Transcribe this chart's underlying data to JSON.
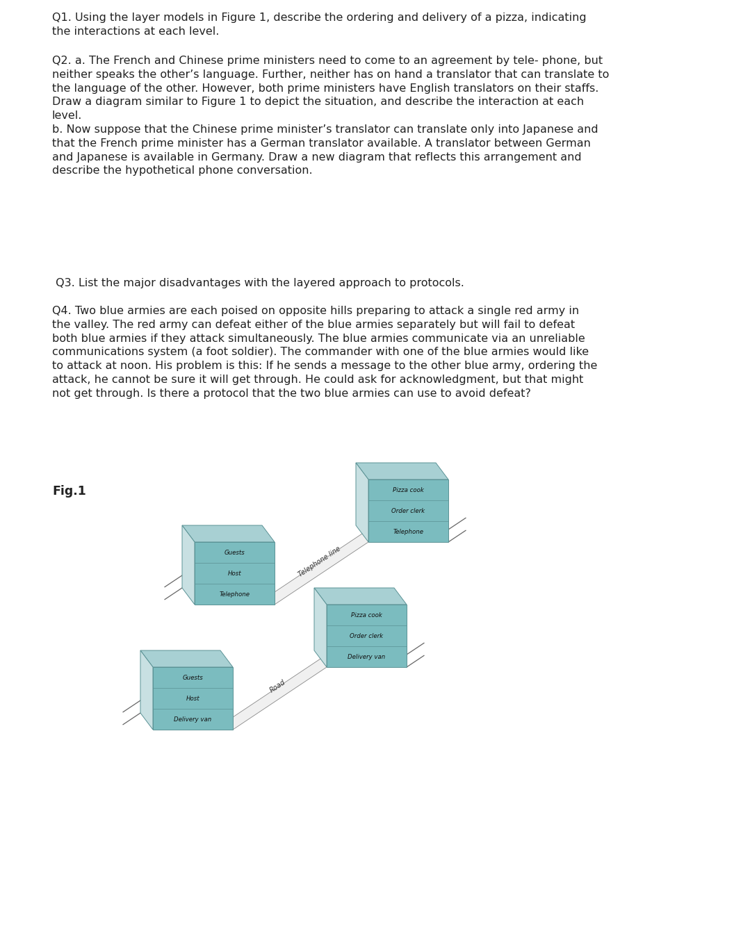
{
  "background_color": "#ffffff",
  "text_color": "#222222",
  "q1": "Q1. Using the layer models in Figure 1, describe the ordering and delivery of a pizza, indicating\nthe interactions at each level.",
  "q2": "Q2. a. The French and Chinese prime ministers need to come to an agreement by tele- phone, but\nneither speaks the other’s language. Further, neither has on hand a translator that can translate to\nthe language of the other. However, both prime ministers have English translators on their staffs.\nDraw a diagram similar to Figure 1 to depict the situation, and describe the interaction at each\nlevel.\nb. Now suppose that the Chinese prime minister’s translator can translate only into Japanese and\nthat the French prime minister has a German translator available. A translator between German\nand Japanese is available in Germany. Draw a new diagram that reflects this arrangement and\ndescribe the hypothetical phone conversation.",
  "q3": " Q3. List the major disadvantages with the layered approach to protocols.",
  "q4": "Q4. Two blue armies are each poised on opposite hills preparing to attack a single red army in\nthe valley. The red army can defeat either of the blue armies separately but will fail to defeat\nboth blue armies if they attack simultaneously. The blue armies communicate via an unreliable\ncommunications system (a foot soldier). The commander with one of the blue armies would like\nto attack at noon. His problem is this: If he sends a message to the other blue army, ordering the\nattack, he cannot be sure it will get through. He could ask for acknowledgment, but that might\nnot get through. Is there a protocol that the two blue armies can use to avoid defeat?",
  "fig_label": "Fig.1",
  "diag1_left_labels": [
    "Guests",
    "Host",
    "Telephone"
  ],
  "diag1_right_labels": [
    "Pizza cook",
    "Order clerk",
    "Telephone"
  ],
  "diag1_connector": "Telephone line",
  "diag2_left_labels": [
    "Guests",
    "Host",
    "Delivery van"
  ],
  "diag2_right_labels": [
    "Pizza cook",
    "Order clerk",
    "Delivery van"
  ],
  "diag2_connector": "Road",
  "box_face_color": "#7bbcbf",
  "box_side_color": "#c8e0e2",
  "box_top_color": "#a8d0d3",
  "box_edge_color": "#5a9295",
  "connector_fill": "#f0f0f0",
  "connector_edge": "#888888",
  "font_size_body": 11.5,
  "font_size_box_label": 6.2,
  "font_size_connector": 7.0,
  "font_size_fig": 12.5
}
